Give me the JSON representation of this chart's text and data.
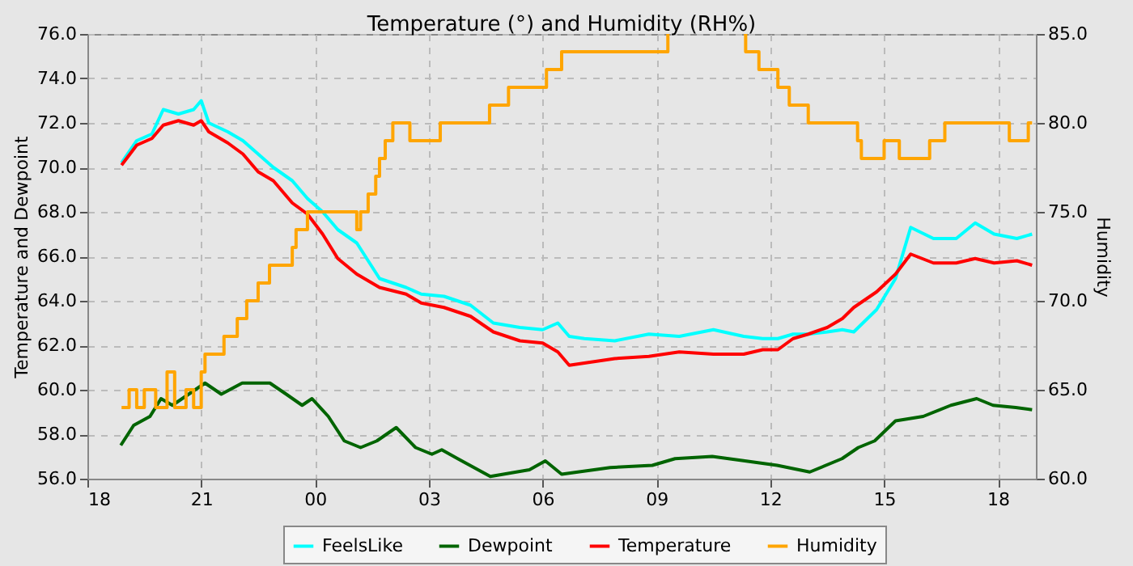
{
  "chart_data": {
    "type": "line",
    "title": "Temperature (°) and Humidity (RH%)",
    "ylabel": "Temperature and Dewpoint",
    "y2label": "Humidity",
    "xlim": [
      18,
      43
    ],
    "xticks": [
      {
        "value": 18,
        "label": "18"
      },
      {
        "value": 21,
        "label": "21"
      },
      {
        "value": 24,
        "label": "00"
      },
      {
        "value": 27,
        "label": "03"
      },
      {
        "value": 30,
        "label": "06"
      },
      {
        "value": 33,
        "label": "09"
      },
      {
        "value": 36,
        "label": "12"
      },
      {
        "value": 39,
        "label": "15"
      },
      {
        "value": 42,
        "label": "18"
      }
    ],
    "ylim": [
      56,
      76
    ],
    "yticks": [
      {
        "value": 56,
        "label": "56.0"
      },
      {
        "value": 58,
        "label": "58.0"
      },
      {
        "value": 60,
        "label": "60.0"
      },
      {
        "value": 62,
        "label": "62.0"
      },
      {
        "value": 64,
        "label": "64.0"
      },
      {
        "value": 66,
        "label": "66.0"
      },
      {
        "value": 68,
        "label": "68.0"
      },
      {
        "value": 70,
        "label": "70.0"
      },
      {
        "value": 72,
        "label": "72.0"
      },
      {
        "value": 74,
        "label": "74.0"
      },
      {
        "value": 76,
        "label": "76.0"
      }
    ],
    "y2lim": [
      60,
      85
    ],
    "y2ticks": [
      {
        "value": 60,
        "label": "60.0"
      },
      {
        "value": 65,
        "label": "65.0"
      },
      {
        "value": 70,
        "label": "70.0"
      },
      {
        "value": 75,
        "label": "75.0"
      },
      {
        "value": 80,
        "label": "80.0"
      },
      {
        "value": 85,
        "label": "85.0"
      }
    ],
    "grid": true,
    "legend": "bottom",
    "x": [
      18.9,
      19.3,
      19.7,
      20.0,
      20.4,
      20.8,
      21.0,
      21.2,
      21.7,
      22.1,
      22.5,
      22.9,
      23.4,
      23.8,
      24.2,
      24.6,
      25.1,
      25.7,
      26.4,
      26.8,
      27.4,
      28.1,
      28.7,
      29.4,
      30.0,
      30.4,
      30.7,
      31.1,
      31.9,
      32.8,
      33.6,
      34.5,
      35.3,
      35.8,
      36.2,
      36.6,
      37.0,
      37.5,
      37.9,
      38.2,
      38.8,
      39.3,
      39.7,
      40.3,
      40.9,
      41.4,
      41.9,
      42.5,
      42.9
    ],
    "series": [
      {
        "name": "FeelsLike",
        "color": "#00ffff",
        "values": [
          70.2,
          71.2,
          71.5,
          72.6,
          72.4,
          72.6,
          73.0,
          72.0,
          71.6,
          71.2,
          70.6,
          70.0,
          69.4,
          68.6,
          68.0,
          67.2,
          66.6,
          65.0,
          64.6,
          64.3,
          64.2,
          63.8,
          63.0,
          62.8,
          62.7,
          63.0,
          62.4,
          62.3,
          62.2,
          62.5,
          62.4,
          62.7,
          62.4,
          62.3,
          62.3,
          62.5,
          62.5,
          62.6,
          62.7,
          62.6,
          63.6,
          65.0,
          67.3,
          66.8,
          66.8,
          67.5,
          67.0,
          66.8,
          67.0
        ]
      },
      {
        "name": "Dewpoint",
        "color": "#006400",
        "x": [
          18.88,
          19.22,
          19.65,
          19.94,
          20.24,
          20.67,
          21.1,
          21.53,
          22.08,
          22.81,
          23.24,
          23.66,
          23.92,
          24.35,
          24.77,
          25.2,
          25.63,
          26.14,
          26.65,
          27.08,
          27.34,
          27.76,
          28.62,
          29.65,
          30.07,
          30.5,
          31.78,
          32.89,
          33.49,
          34.47,
          35.33,
          36.18,
          37.04,
          37.89,
          38.32,
          38.75,
          39.3,
          40.03,
          40.76,
          41.44,
          41.87,
          42.47,
          42.9
        ],
        "values": [
          57.5,
          58.4,
          58.8,
          59.6,
          59.3,
          59.8,
          60.3,
          59.8,
          60.3,
          60.3,
          59.8,
          59.3,
          59.6,
          58.8,
          57.7,
          57.4,
          57.7,
          58.3,
          57.4,
          57.1,
          57.3,
          56.9,
          56.1,
          56.4,
          56.8,
          56.2,
          56.5,
          56.6,
          56.9,
          57.0,
          56.8,
          56.6,
          56.3,
          56.9,
          57.4,
          57.7,
          58.6,
          58.8,
          59.3,
          59.6,
          59.3,
          59.2,
          59.1
        ]
      },
      {
        "name": "Temperature",
        "color": "#ff0000",
        "values": [
          70.1,
          71.0,
          71.3,
          71.9,
          72.1,
          71.9,
          72.1,
          71.6,
          71.1,
          70.6,
          69.8,
          69.4,
          68.4,
          67.9,
          67.0,
          65.9,
          65.2,
          64.6,
          64.3,
          63.9,
          63.7,
          63.3,
          62.6,
          62.2,
          62.1,
          61.7,
          61.1,
          61.2,
          61.4,
          61.5,
          61.7,
          61.6,
          61.6,
          61.8,
          61.8,
          62.3,
          62.5,
          62.8,
          63.2,
          63.7,
          64.4,
          65.2,
          66.1,
          65.7,
          65.7,
          65.9,
          65.7,
          65.8,
          65.6
        ]
      },
      {
        "name": "Humidity",
        "color": "#ffa500",
        "type": "step",
        "axis": "y2",
        "x": [
          18.9,
          19.1,
          19.3,
          19.5,
          19.8,
          20.1,
          20.3,
          20.6,
          20.8,
          21.0,
          21.1,
          21.6,
          21.95,
          22.2,
          22.5,
          22.8,
          23.4,
          23.5,
          23.8,
          25.1,
          25.2,
          25.4,
          25.6,
          25.7,
          25.85,
          26.05,
          26.5,
          27.3,
          28.6,
          29.1,
          30.1,
          30.5,
          33.3,
          33.4,
          35.3,
          35.35,
          35.7,
          36.2,
          36.5,
          37.0,
          38.3,
          38.4,
          39.0,
          39.4,
          40.2,
          40.6,
          42.3,
          42.8,
          42.9
        ],
        "values": [
          64,
          65,
          64,
          65,
          64,
          66,
          64,
          65,
          64,
          66,
          67,
          68,
          69,
          70,
          71,
          72,
          73,
          74,
          75,
          74,
          75,
          76,
          77,
          78,
          79,
          80,
          79,
          80,
          81,
          82,
          83,
          84,
          85,
          null,
          85,
          84,
          83,
          82,
          81,
          80,
          79,
          78,
          79,
          78,
          79,
          80,
          79,
          80,
          80
        ]
      }
    ]
  }
}
